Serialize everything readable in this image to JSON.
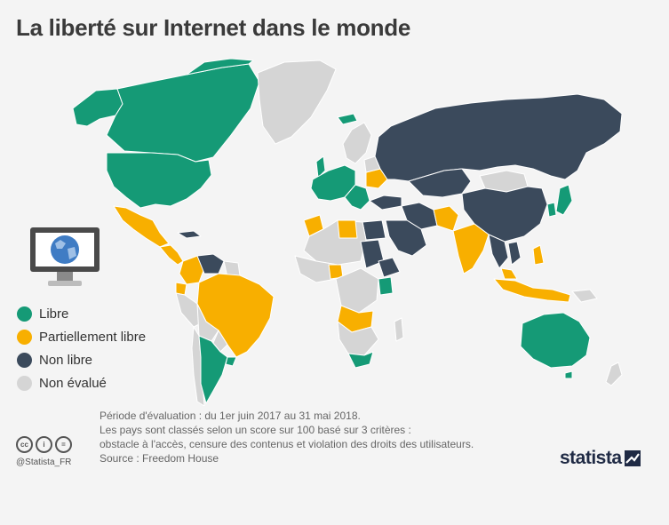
{
  "title": "La liberté sur Internet dans le monde",
  "colors": {
    "background": "#f4f4f4",
    "libre": "#159a76",
    "partiellement_libre": "#f8af00",
    "non_libre": "#3b4a5c",
    "non_evalue": "#d5d5d5",
    "border": "#ffffff",
    "title": "#3a3a3a",
    "note_text": "#666666",
    "brand": "#1f2a44"
  },
  "legend": [
    {
      "key": "libre",
      "label": "Libre",
      "color": "#159a76"
    },
    {
      "key": "partiellement_libre",
      "label": "Partiellement libre",
      "color": "#f8af00"
    },
    {
      "key": "non_libre",
      "label": "Non libre",
      "color": "#3b4a5c"
    },
    {
      "key": "non_evalue",
      "label": "Non évalué",
      "color": "#d5d5d5"
    }
  ],
  "notes": {
    "periode": "Période d'évaluation : du 1er juin 2017 au 31 mai 2018.",
    "methode_1": "Les pays sont classés selon un score sur 100 basé sur 3 critères :",
    "methode_2": "obstacle à l'accès, censure des contenus et violation des droits des utilisateurs.",
    "source": "Source : Freedom House"
  },
  "footer": {
    "cc_icons": [
      "cc-icon",
      "by-icon",
      "equals-icon"
    ],
    "cc_icon_glyphs": [
      "cc",
      "i",
      "="
    ],
    "handle": "@Statista_FR",
    "brand": "statista"
  },
  "icons": {
    "illustration": "computer-globe-icon"
  }
}
